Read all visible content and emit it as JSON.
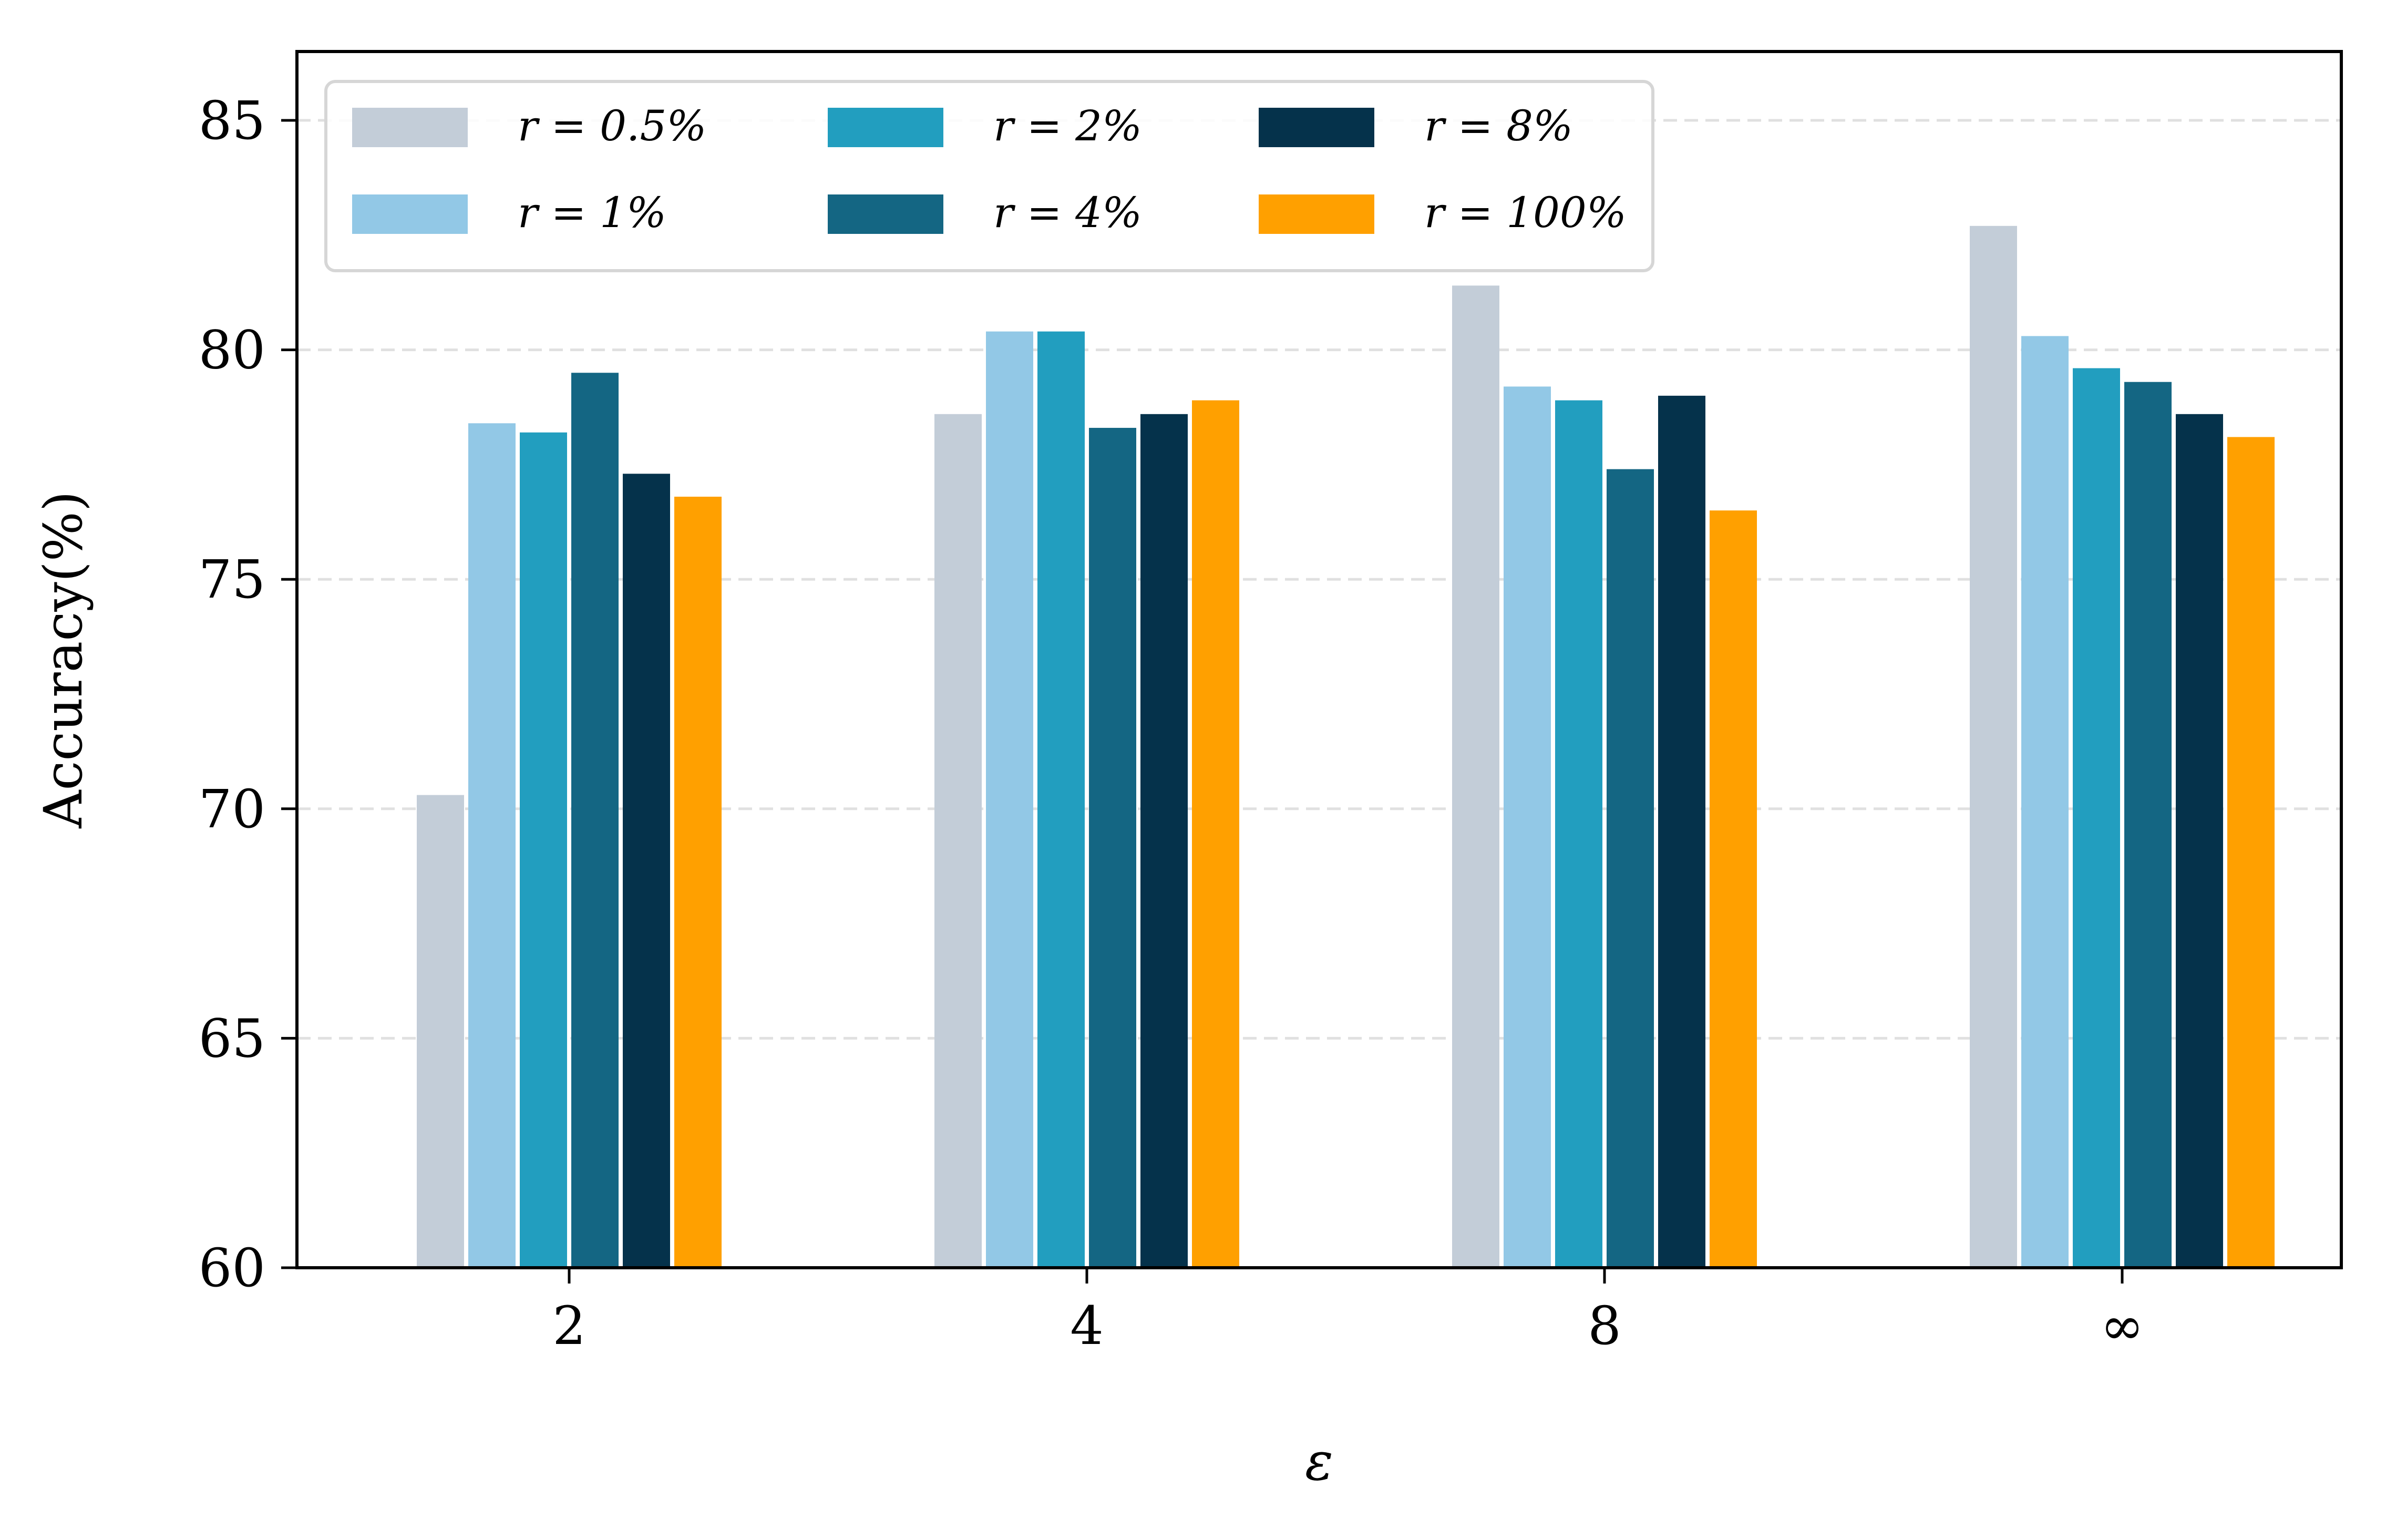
{
  "chart_data": {
    "type": "bar",
    "categories": [
      "2",
      "4",
      "8",
      "∞"
    ],
    "xlabel": "ε",
    "ylabel": "Accuracy(%)",
    "ylim": [
      60,
      86.5
    ],
    "yticks": [
      60,
      65,
      70,
      75,
      80,
      85
    ],
    "grid": "horizontal-dashed",
    "legend_placement": "top-left",
    "legend_columns": 3,
    "series": [
      {
        "name": "r = 0.5%",
        "color": "#c3cdd8",
        "values": [
          70.3,
          78.6,
          81.4,
          82.7
        ]
      },
      {
        "name": "r = 1%",
        "color": "#92c8e6",
        "values": [
          78.4,
          80.4,
          79.2,
          80.3
        ]
      },
      {
        "name": "r = 2%",
        "color": "#229ebf",
        "values": [
          78.2,
          80.4,
          78.9,
          79.6
        ]
      },
      {
        "name": "r = 4%",
        "color": "#146683",
        "values": [
          79.5,
          78.3,
          77.4,
          79.3
        ]
      },
      {
        "name": "r = 8%",
        "color": "#05324b",
        "values": [
          77.3,
          78.6,
          79.0,
          78.6
        ]
      },
      {
        "name": "r = 100%",
        "color": "#ffa000",
        "values": [
          76.8,
          78.9,
          76.5,
          78.1
        ]
      }
    ]
  }
}
